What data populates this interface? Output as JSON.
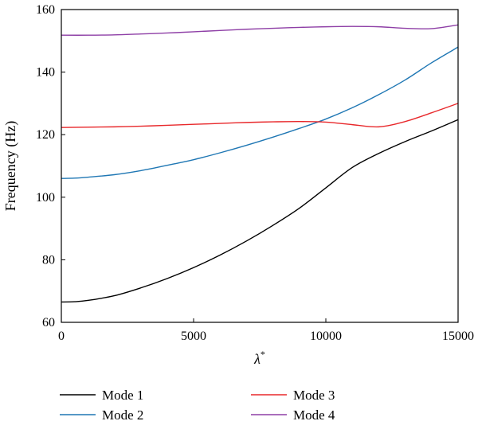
{
  "chart_data": {
    "type": "line",
    "title": "",
    "xlabel": "λ",
    "xlabel_sup": "*",
    "ylabel": "Frequency (Hz)",
    "xlim": [
      0,
      15000
    ],
    "ylim": [
      60,
      160
    ],
    "xticks": [
      0,
      5000,
      10000,
      15000
    ],
    "yticks": [
      60,
      80,
      100,
      120,
      140,
      160
    ],
    "grid": false,
    "legend_position": "bottom",
    "series": [
      {
        "name": "Mode 1",
        "color": "#000000",
        "x": [
          0,
          500,
          1000,
          2000,
          3000,
          4000,
          5000,
          6000,
          7000,
          8000,
          9000,
          10000,
          11000,
          12000,
          13000,
          14000,
          15000
        ],
        "y": [
          66.5,
          66.6,
          67.0,
          68.5,
          71.0,
          74.0,
          77.5,
          81.5,
          86.0,
          91.0,
          96.5,
          103.0,
          109.5,
          114.0,
          117.8,
          121.2,
          124.8
        ]
      },
      {
        "name": "Mode 2",
        "color": "#1f77b4",
        "x": [
          0,
          500,
          1000,
          2000,
          3000,
          4000,
          5000,
          6000,
          7000,
          8000,
          9000,
          10000,
          11000,
          12000,
          13000,
          14000,
          15000
        ],
        "y": [
          106.0,
          106.1,
          106.4,
          107.2,
          108.5,
          110.2,
          112.0,
          114.2,
          116.6,
          119.2,
          122.0,
          125.0,
          128.6,
          132.8,
          137.5,
          143.0,
          148.0
        ]
      },
      {
        "name": "Mode 3",
        "color": "#e8282b",
        "x": [
          0,
          1000,
          2000,
          3000,
          4000,
          5000,
          6000,
          7000,
          8000,
          9000,
          10000,
          11000,
          12000,
          13000,
          14000,
          15000
        ],
        "y": [
          122.3,
          122.4,
          122.5,
          122.7,
          123.0,
          123.3,
          123.6,
          123.9,
          124.1,
          124.2,
          124.0,
          123.2,
          122.5,
          124.2,
          127.0,
          130.0
        ]
      },
      {
        "name": "Mode 4",
        "color": "#8e3fa6",
        "x": [
          0,
          1000,
          2000,
          3000,
          4000,
          5000,
          6000,
          7000,
          8000,
          9000,
          10000,
          11000,
          12000,
          13000,
          14000,
          15000
        ],
        "y": [
          151.8,
          151.8,
          151.9,
          152.2,
          152.5,
          152.9,
          153.3,
          153.7,
          154.0,
          154.3,
          154.5,
          154.6,
          154.5,
          154.0,
          153.9,
          155.1
        ]
      }
    ]
  }
}
